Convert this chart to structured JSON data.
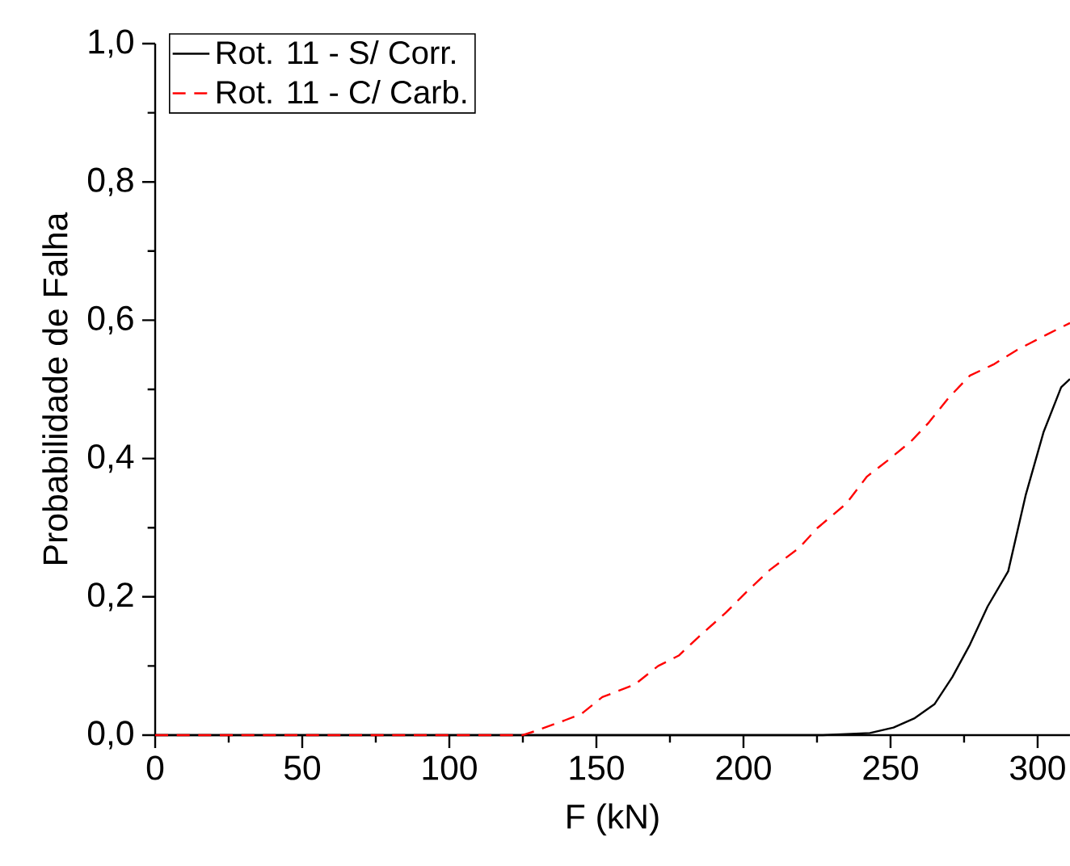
{
  "chart_data": {
    "type": "line",
    "xlabel": "F (kN)",
    "ylabel": "Probabilidade de Falha",
    "xlim": [
      0,
      311
    ],
    "ylim": [
      0,
      1
    ],
    "xticks": [
      0,
      50,
      100,
      150,
      200,
      250,
      300
    ],
    "yticks": [
      {
        "value": 0,
        "label": "0,0"
      },
      {
        "value": 0.2,
        "label": "0,2"
      },
      {
        "value": 0.4,
        "label": "0,4"
      },
      {
        "value": 0.6,
        "label": "0,6"
      },
      {
        "value": 0.8,
        "label": "0,8"
      },
      {
        "value": 1,
        "label": "1,0"
      }
    ],
    "grid": false,
    "legend": "top left",
    "marker": "none",
    "series": [
      {
        "name": "Rot. 11 - S/ Corr.",
        "color": "#000000",
        "line_style": "solid",
        "x": [
          0,
          227,
          243,
          251,
          258,
          265,
          271,
          277,
          283,
          290,
          296,
          302,
          308,
          311
        ],
        "values": [
          0,
          0,
          0.003,
          0.011,
          0.024,
          0.045,
          0.084,
          0.131,
          0.186,
          0.237,
          0.348,
          0.438,
          0.503,
          0.515
        ]
      },
      {
        "name": "Rot. 11 - C/ Carb.",
        "color": "#ff0000",
        "line_style": "dashed",
        "x": [
          0,
          125,
          130,
          139,
          145,
          152,
          163,
          171,
          178,
          185,
          194,
          201,
          209,
          219,
          225,
          235,
          242,
          249,
          257,
          263,
          270,
          277,
          285,
          293,
          303,
          311
        ],
        "values": [
          0,
          0,
          0.007,
          0.021,
          0.031,
          0.055,
          0.073,
          0.1,
          0.115,
          0.143,
          0.177,
          0.207,
          0.239,
          0.271,
          0.299,
          0.335,
          0.374,
          0.397,
          0.425,
          0.452,
          0.489,
          0.52,
          0.536,
          0.557,
          0.579,
          0.596
        ]
      }
    ]
  }
}
